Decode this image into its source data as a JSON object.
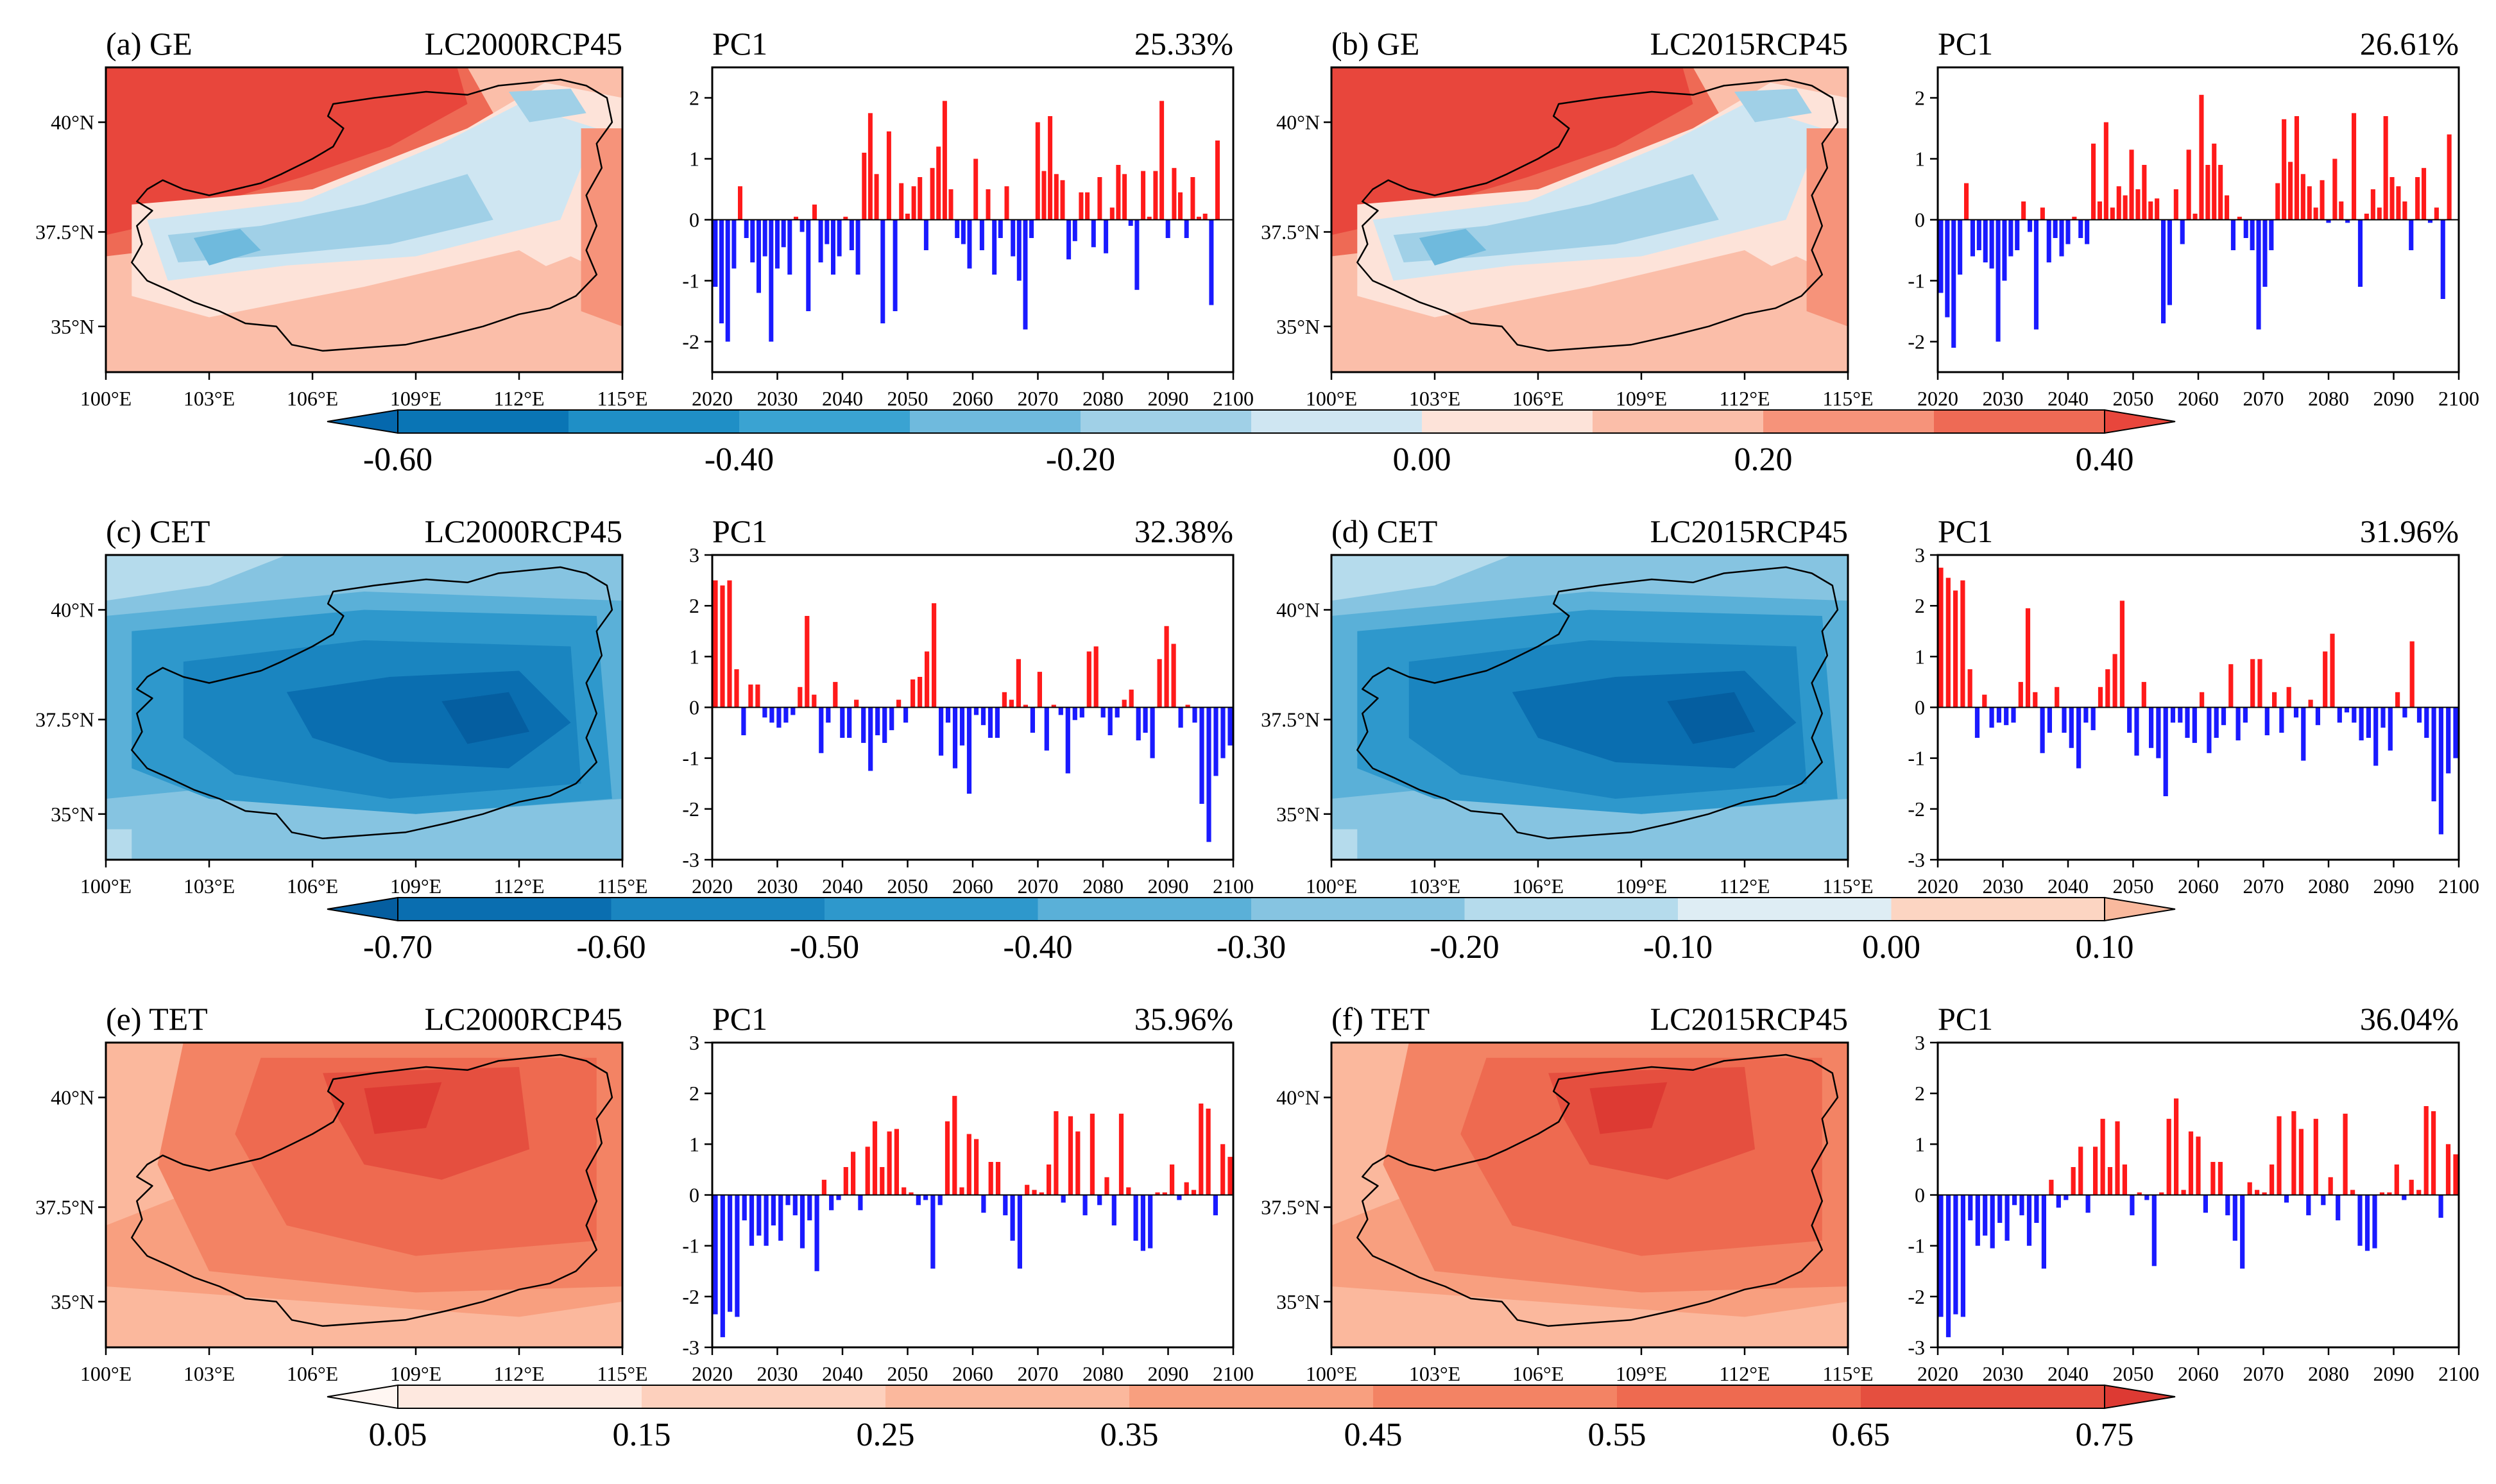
{
  "figure": {
    "map_lon_ticks": [
      "100°E",
      "103°E",
      "106°E",
      "109°E",
      "112°E",
      "115°E"
    ],
    "map_lat_ticks": [
      "40°N",
      "37.5°N",
      "35°N"
    ],
    "year_ticks": [
      "2020",
      "2030",
      "2040",
      "2050",
      "2060",
      "2070",
      "2080",
      "2090",
      "2100"
    ]
  },
  "rows": [
    {
      "var": "GE",
      "map_palette": "ge",
      "colorbar": {
        "colors": [
          "#0a75b5",
          "#1f8fc6",
          "#3aa3d2",
          "#6fbadd",
          "#a0d0e7",
          "#cfe6f2",
          "#fde3d9",
          "#fbbea9",
          "#f6937a",
          "#ee6a55"
        ],
        "under_color": "#0568ad",
        "over_color": "#e8463c",
        "labels": [
          "-0.60",
          "-0.40",
          "-0.20",
          "0.00",
          "0.20",
          "0.40"
        ]
      },
      "panels": [
        {
          "id": "a",
          "title_left": "(a) GE",
          "title_right": "LC2000RCP45"
        },
        {
          "id": "b",
          "title_left": "(b) GE",
          "title_right": "LC2015RCP45"
        }
      ]
    },
    {
      "var": "CET",
      "map_palette": "cet",
      "colorbar": {
        "colors": [
          "#0a6eb0",
          "#1a85c0",
          "#2e98cc",
          "#5ab0d8",
          "#86c4e1",
          "#b5dbec",
          "#deedf4",
          "#fcd5c2"
        ],
        "under_color": "#055ea0",
        "over_color": "#f9b99d",
        "labels": [
          "-0.70",
          "-0.60",
          "-0.50",
          "-0.40",
          "-0.30",
          "-0.20",
          "-0.10",
          "0.00",
          "0.10"
        ]
      },
      "panels": [
        {
          "id": "c",
          "title_left": "(c) CET",
          "title_right": "LC2000RCP45"
        },
        {
          "id": "d",
          "title_left": "(d) CET",
          "title_right": "LC2015RCP45"
        }
      ]
    },
    {
      "var": "TET",
      "map_palette": "tet",
      "colorbar": {
        "colors": [
          "#fee8df",
          "#fdd0bd",
          "#fbb89d",
          "#f89f7f",
          "#f38364",
          "#ee6a50",
          "#e54f3f"
        ],
        "under_color": "#fff6f2",
        "over_color": "#dd3a33",
        "labels": [
          "0.05",
          "0.15",
          "0.25",
          "0.35",
          "0.45",
          "0.55",
          "0.65",
          "0.75"
        ]
      },
      "panels": [
        {
          "id": "e",
          "title_left": "(e) TET",
          "title_right": "LC2000RCP45"
        },
        {
          "id": "f",
          "title_left": "(f) TET",
          "title_right": "LC2015RCP45"
        }
      ]
    }
  ],
  "chart_data": [
    {
      "type": "bar",
      "panel": "a",
      "title": "PC1",
      "variance_label": "25.33%",
      "x_start": 2020,
      "xlim": [
        2020,
        2100
      ],
      "ylim": [
        -2.5,
        2.5
      ],
      "yticks": [
        "-2",
        "-1",
        "0",
        "1",
        "2"
      ],
      "values": [
        -1.1,
        -1.7,
        -2.0,
        -0.8,
        0.55,
        -0.3,
        -0.7,
        -1.2,
        -0.6,
        -2.0,
        -0.8,
        -0.45,
        -0.9,
        0.05,
        -0.2,
        -1.5,
        0.25,
        -0.7,
        -0.4,
        -0.9,
        -0.6,
        0.05,
        -0.5,
        -0.9,
        1.1,
        1.75,
        0.75,
        -1.7,
        1.45,
        -1.5,
        0.6,
        0.1,
        0.55,
        0.7,
        -0.5,
        0.85,
        1.2,
        1.95,
        0.5,
        -0.3,
        -0.4,
        -0.8,
        1.0,
        -0.5,
        0.5,
        -0.9,
        -0.3,
        0.55,
        -0.6,
        -1.0,
        -1.8,
        -0.3,
        1.6,
        0.8,
        1.7,
        0.75,
        0.65,
        -0.65,
        -0.35,
        0.45,
        0.45,
        -0.45,
        0.7,
        -0.55,
        0.2,
        0.9,
        0.75,
        -0.1,
        -1.15,
        0.8,
        0.05,
        0.8,
        1.95,
        -0.3,
        0.85,
        0.45,
        -0.3,
        0.7,
        0.05,
        0.1,
        -1.4,
        1.3
      ]
    },
    {
      "type": "bar",
      "panel": "b",
      "title": "PC1",
      "variance_label": "26.61%",
      "x_start": 2020,
      "xlim": [
        2020,
        2100
      ],
      "ylim": [
        -2.5,
        2.5
      ],
      "yticks": [
        "-2",
        "-1",
        "0",
        "1",
        "2"
      ],
      "values": [
        -1.2,
        -1.6,
        -2.1,
        -0.9,
        0.6,
        -0.6,
        -0.5,
        -0.7,
        -0.8,
        -2.0,
        -1.0,
        -0.6,
        -0.5,
        0.3,
        -0.2,
        -1.8,
        0.2,
        -0.7,
        -0.3,
        -0.6,
        -0.4,
        0.05,
        -0.3,
        -0.4,
        1.25,
        0.3,
        1.6,
        0.2,
        0.55,
        0.4,
        1.15,
        0.5,
        0.9,
        0.3,
        0.35,
        -1.7,
        -1.4,
        0.5,
        -0.4,
        1.15,
        0.1,
        2.05,
        0.9,
        1.25,
        0.9,
        0.4,
        -0.5,
        0.05,
        -0.3,
        -0.5,
        -1.8,
        -1.1,
        -0.5,
        0.6,
        1.65,
        0.95,
        1.7,
        0.75,
        0.55,
        0.2,
        0.65,
        -0.05,
        1.0,
        0.3,
        -0.05,
        1.75,
        -1.1,
        0.1,
        0.5,
        0.2,
        1.7,
        0.7,
        0.55,
        0.3,
        -0.5,
        0.7,
        0.85,
        -0.05,
        0.2,
        -1.3,
        1.4
      ]
    },
    {
      "type": "bar",
      "panel": "c",
      "title": "PC1",
      "variance_label": "32.38%",
      "x_start": 2020,
      "xlim": [
        2020,
        2100
      ],
      "ylim": [
        -3,
        3
      ],
      "yticks": [
        "-3",
        "-2",
        "-1",
        "0",
        "1",
        "2",
        "3"
      ],
      "values": [
        2.5,
        2.4,
        2.5,
        0.75,
        -0.55,
        0.45,
        0.45,
        -0.2,
        -0.3,
        -0.4,
        -0.3,
        -0.15,
        0.4,
        1.8,
        0.25,
        -0.9,
        -0.3,
        0.5,
        -0.6,
        -0.6,
        0.15,
        -0.7,
        -1.25,
        -0.55,
        -0.7,
        -0.45,
        0.15,
        -0.3,
        0.55,
        0.6,
        1.1,
        2.05,
        -0.95,
        -0.3,
        -1.2,
        -0.75,
        -1.7,
        -0.15,
        -0.35,
        -0.6,
        -0.6,
        0.3,
        0.15,
        0.95,
        0.05,
        -0.5,
        0.7,
        -0.85,
        0.05,
        -0.15,
        -1.3,
        -0.25,
        -0.2,
        1.1,
        1.2,
        -0.2,
        -0.55,
        -0.2,
        0.15,
        0.35,
        -0.65,
        -0.5,
        -1.0,
        0.95,
        1.6,
        1.25,
        -0.4,
        0.05,
        -0.3,
        -1.9,
        -2.65,
        -1.35,
        -1.0,
        -0.75
      ]
    },
    {
      "type": "bar",
      "panel": "d",
      "title": "PC1",
      "variance_label": "31.96%",
      "x_start": 2020,
      "xlim": [
        2020,
        2100
      ],
      "ylim": [
        -3,
        3
      ],
      "yticks": [
        "-3",
        "-2",
        "-1",
        "0",
        "1",
        "2",
        "3"
      ],
      "values": [
        2.75,
        2.55,
        2.3,
        2.5,
        0.75,
        -0.6,
        0.25,
        -0.4,
        -0.3,
        -0.35,
        -0.3,
        0.5,
        1.95,
        0.3,
        -0.9,
        -0.5,
        0.4,
        -0.5,
        -0.8,
        -1.2,
        -0.3,
        -0.45,
        0.4,
        0.75,
        1.05,
        2.1,
        -0.5,
        -0.95,
        0.5,
        -0.8,
        -1.0,
        -1.75,
        -0.3,
        -0.3,
        -0.6,
        -0.7,
        0.3,
        -0.9,
        -0.6,
        -0.35,
        0.85,
        -0.65,
        -0.3,
        0.95,
        0.95,
        -0.55,
        0.3,
        -0.5,
        0.4,
        -0.2,
        -1.05,
        0.15,
        -0.35,
        1.1,
        1.45,
        -0.3,
        -0.1,
        -0.3,
        -0.65,
        -0.6,
        -1.15,
        -0.4,
        -0.85,
        0.3,
        -0.2,
        1.3,
        -0.3,
        -0.6,
        -1.85,
        -2.5,
        -1.3,
        -1.0
      ]
    },
    {
      "type": "bar",
      "panel": "e",
      "title": "PC1",
      "variance_label": "35.96%",
      "x_start": 2020,
      "xlim": [
        2020,
        2100
      ],
      "ylim": [
        -3,
        3
      ],
      "yticks": [
        "-3",
        "-2",
        "-1",
        "0",
        "1",
        "2",
        "3"
      ],
      "values": [
        -2.35,
        -2.8,
        -2.3,
        -2.4,
        -0.5,
        -1.0,
        -0.8,
        -1.0,
        -0.6,
        -0.9,
        -0.2,
        -0.4,
        -1.05,
        -0.5,
        -1.5,
        0.3,
        -0.3,
        -0.1,
        0.55,
        0.85,
        -0.3,
        0.95,
        1.45,
        0.55,
        1.25,
        1.3,
        0.15,
        0.05,
        -0.2,
        -0.1,
        -1.45,
        -0.2,
        1.45,
        1.95,
        0.15,
        1.2,
        1.1,
        -0.35,
        0.65,
        0.65,
        -0.4,
        -0.9,
        -1.45,
        0.2,
        0.1,
        0.05,
        0.6,
        1.65,
        -0.15,
        1.55,
        1.25,
        -0.4,
        1.6,
        -0.2,
        0.35,
        -0.6,
        1.6,
        0.15,
        -0.9,
        -1.1,
        -1.05,
        0.05,
        0.05,
        0.6,
        -0.1,
        0.25,
        0.1,
        1.8,
        1.7,
        -0.4,
        1.0,
        0.75
      ]
    },
    {
      "type": "bar",
      "panel": "f",
      "title": "PC1",
      "variance_label": "36.04%",
      "x_start": 2020,
      "xlim": [
        2020,
        2100
      ],
      "ylim": [
        -3,
        3
      ],
      "yticks": [
        "-3",
        "-2",
        "-1",
        "0",
        "1",
        "2",
        "3"
      ],
      "values": [
        -2.4,
        -2.8,
        -2.35,
        -2.4,
        -0.5,
        -1.0,
        -0.8,
        -1.05,
        -0.55,
        -0.9,
        -0.2,
        -0.4,
        -1.0,
        -0.55,
        -1.45,
        0.3,
        -0.25,
        -0.1,
        0.55,
        0.95,
        -0.35,
        0.95,
        1.5,
        0.55,
        1.45,
        0.6,
        -0.4,
        0.05,
        -0.1,
        -1.4,
        0.05,
        1.5,
        1.9,
        0.1,
        1.25,
        1.15,
        -0.35,
        0.65,
        0.65,
        -0.4,
        -0.9,
        -1.45,
        0.25,
        0.1,
        0.05,
        0.6,
        1.55,
        -0.15,
        1.65,
        1.3,
        -0.4,
        1.5,
        -0.2,
        0.35,
        -0.5,
        1.6,
        0.1,
        -1.0,
        -1.1,
        -1.05,
        0.05,
        0.05,
        0.6,
        -0.1,
        0.3,
        0.1,
        1.75,
        1.65,
        -0.45,
        1.0,
        0.8
      ]
    }
  ]
}
